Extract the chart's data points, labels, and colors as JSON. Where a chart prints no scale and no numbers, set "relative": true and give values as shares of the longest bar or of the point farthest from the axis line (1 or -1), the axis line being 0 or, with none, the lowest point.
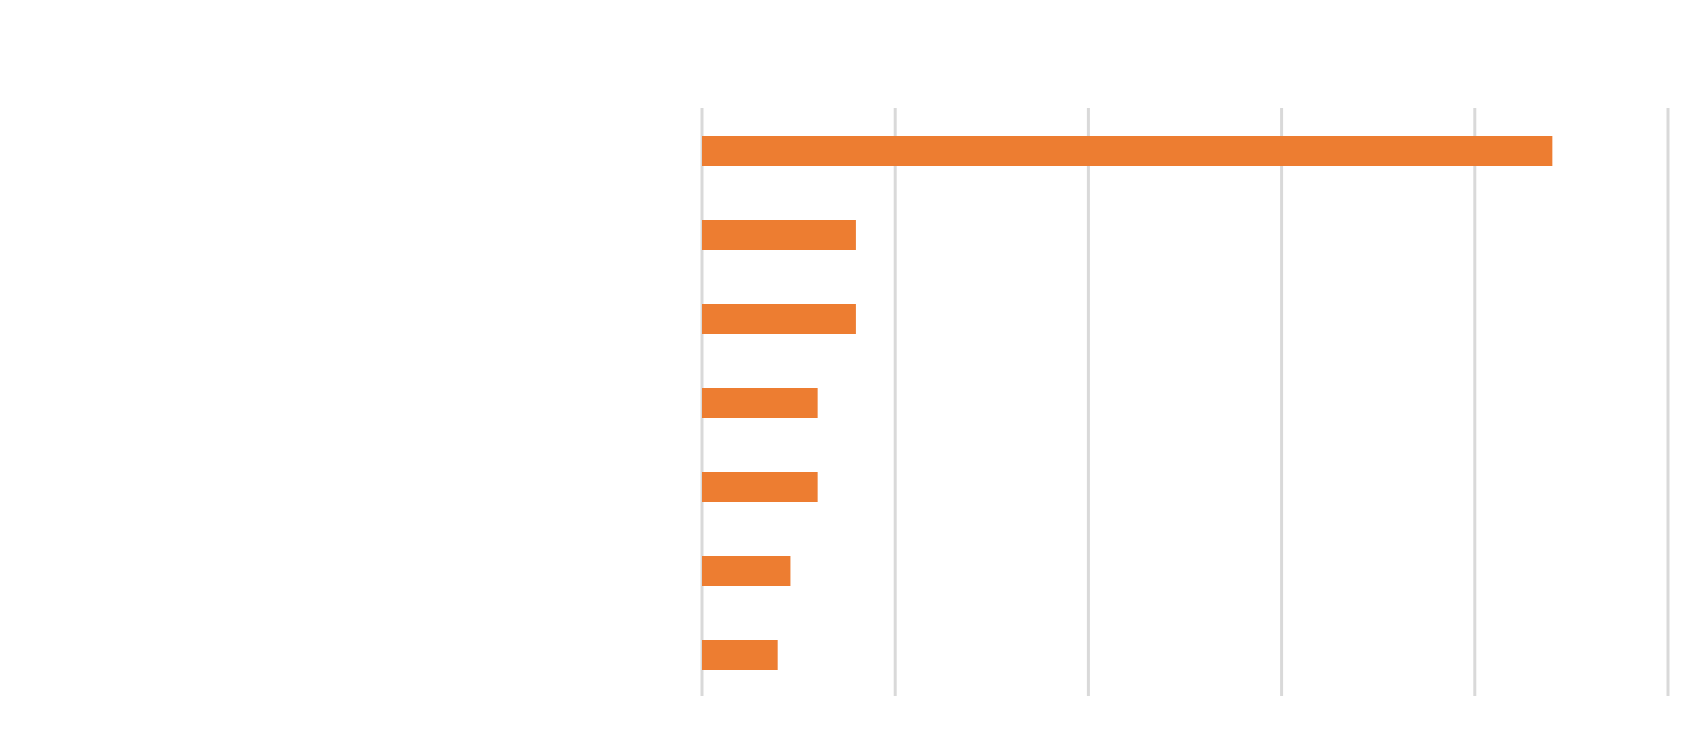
{
  "chart_data": {
    "type": "bar",
    "orientation": "horizontal",
    "relative": true,
    "grid": "x",
    "categories": [
      null,
      null,
      null,
      null,
      null,
      null,
      null
    ],
    "series": [
      {
        "color": "#ed7d31",
        "values": [
          1,
          0.181,
          0.181,
          0.136,
          0.136,
          0.104,
          0.089
        ]
      }
    ]
  }
}
